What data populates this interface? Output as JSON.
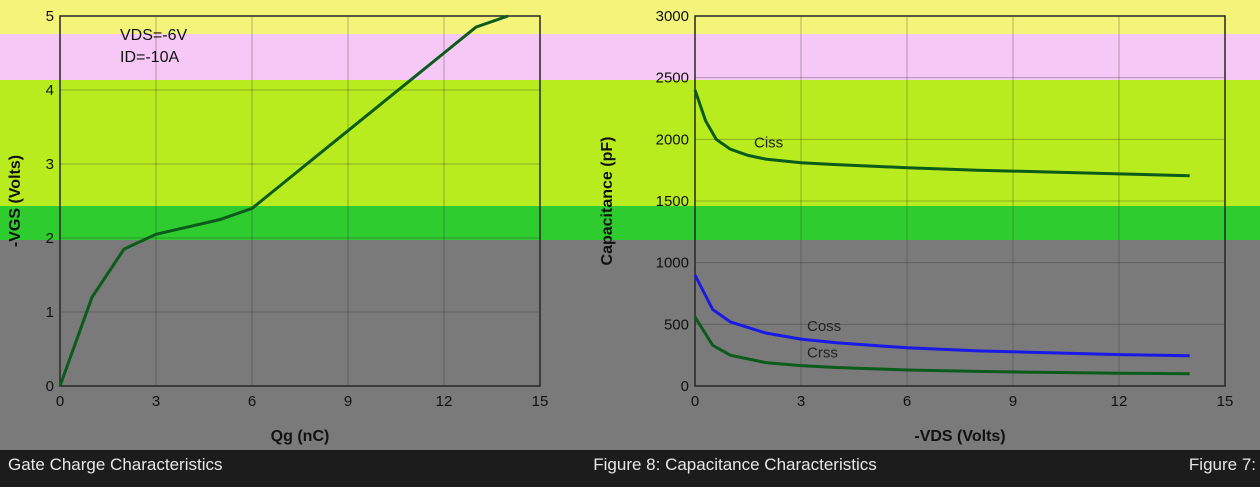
{
  "colors": {
    "band_yellow": "#f4f47a",
    "band_pink": "#f5c8f5",
    "band_lime": "#b8ec1e",
    "band_green": "#2ecc2e",
    "band_gray": "#7a7a7a",
    "band_dark": "#1c1c1c",
    "curve_dark": "#0b5b1b",
    "curve_blue": "#1a1ae6"
  },
  "footer": {
    "left_caption": "Gate Charge Characteristics",
    "center_caption": "Figure 8: Capacitance Characteristics",
    "right_caption": "Figure 7:"
  },
  "chart_data": [
    {
      "type": "line",
      "title": "Gate Charge Characteristics",
      "xlabel": "Qg (nC)",
      "ylabel": "-VGS (Volts)",
      "xlim": [
        0,
        15
      ],
      "ylim": [
        0,
        5
      ],
      "x_ticks": [
        "0",
        "3",
        "6",
        "9",
        "12",
        "15"
      ],
      "y_ticks": [
        "0",
        "1",
        "2",
        "3",
        "4",
        "5"
      ],
      "annotations": [
        "VDS=-6V",
        "ID=-10A"
      ],
      "series": [
        {
          "x": [
            0,
            1.0,
            2.0,
            3.0,
            3.5,
            4.0,
            5.0,
            6.0,
            7.0,
            8.0,
            9.0,
            10.0,
            11.0,
            12.0,
            13.0,
            14.0
          ],
          "y": [
            0,
            1.2,
            1.85,
            2.05,
            2.1,
            2.15,
            2.25,
            2.4,
            2.75,
            3.1,
            3.45,
            3.8,
            4.15,
            4.5,
            4.85,
            5.0
          ]
        }
      ]
    },
    {
      "type": "line",
      "title": "Capacitance Characteristics",
      "xlabel": "-VDS (Volts)",
      "ylabel": "Capacitance (pF)",
      "xlim": [
        0,
        15
      ],
      "ylim": [
        0,
        3000
      ],
      "x_ticks": [
        "0",
        "3",
        "6",
        "9",
        "12",
        "15"
      ],
      "y_ticks": [
        "0",
        "500",
        "1000",
        "1500",
        "2000",
        "2500",
        "3000"
      ],
      "series": [
        {
          "name": "Ciss",
          "x": [
            0,
            0.3,
            0.6,
            1,
            1.5,
            2,
            3,
            4,
            6,
            8,
            10,
            12,
            14
          ],
          "y": [
            2400,
            2150,
            2000,
            1920,
            1870,
            1840,
            1810,
            1795,
            1770,
            1750,
            1735,
            1720,
            1705
          ]
        },
        {
          "name": "Coss",
          "x": [
            0,
            0.5,
            1,
            2,
            3,
            4,
            6,
            8,
            10,
            12,
            14
          ],
          "y": [
            900,
            620,
            520,
            430,
            380,
            350,
            310,
            285,
            270,
            255,
            245
          ]
        },
        {
          "name": "Crss",
          "x": [
            0,
            0.5,
            1,
            2,
            3,
            4,
            6,
            8,
            10,
            12,
            14
          ],
          "y": [
            560,
            330,
            250,
            190,
            165,
            150,
            130,
            118,
            110,
            104,
            100
          ]
        }
      ]
    }
  ]
}
